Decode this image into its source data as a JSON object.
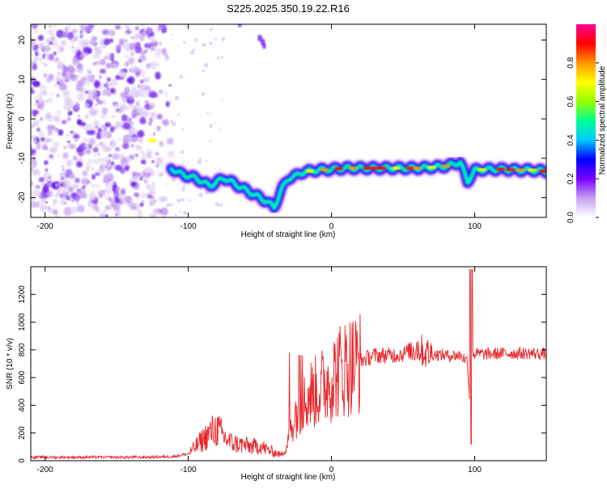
{
  "figure_title": "S225.2025.350.19.22.R16",
  "chart_data": [
    {
      "type": "heatmap",
      "xlabel": "Height of straight line (km)",
      "ylabel": "Frequency (Hz)",
      "xlim": [
        -210,
        150
      ],
      "ylim": [
        -25,
        24
      ],
      "x_ticks": [
        -200,
        -100,
        0,
        100
      ],
      "y_ticks": [
        -20,
        -10,
        0,
        10,
        20
      ],
      "colorbar": {
        "label": "Normalized spectral amplitude",
        "range": [
          0,
          1
        ],
        "ticks": [
          "0.0",
          "0.2",
          "0.4",
          "0.6",
          "0.8"
        ],
        "colors": [
          "#ffffff",
          "#c8a0f0",
          "#7a00ff",
          "#0000ff",
          "#00c8ff",
          "#00ff96",
          "#96ff00",
          "#ffff00",
          "#ff9600",
          "#ff0000",
          "#ff0096"
        ]
      },
      "ridge": {
        "x": [
          -135,
          -120,
          -112,
          -105,
          -95,
          -85,
          -75,
          -65,
          -55,
          -45,
          -40,
          -35,
          -30,
          -25,
          -20,
          -10,
          0,
          10,
          20,
          40,
          50,
          60,
          70,
          80,
          90,
          95,
          100,
          110,
          120,
          130,
          140,
          150
        ],
        "y": [
          -5.5,
          -5.5,
          -12.5,
          -14,
          -15,
          -17,
          -15,
          -17,
          -19,
          -21,
          -22.5,
          -18,
          -15,
          -14.5,
          -13.5,
          -13,
          -12.8,
          -12.5,
          -12.5,
          -12.5,
          -12.5,
          -12.5,
          -12.3,
          -12,
          -11,
          -16,
          -13,
          -12.8,
          -12.8,
          -13,
          -13,
          -13.3
        ]
      }
    },
    {
      "type": "line",
      "xlabel": "Height of straight line (km)",
      "ylabel": "SNR (10 * v/v)",
      "xlim": [
        -210,
        150
      ],
      "ylim": [
        0,
        1400
      ],
      "x_ticks": [
        -200,
        -100,
        0,
        100
      ],
      "y_ticks": [
        0,
        200,
        400,
        600,
        800,
        1000,
        1200
      ],
      "series": [
        {
          "name": "SNR",
          "color": "#e8262a",
          "x": [
            -210,
            -190,
            -170,
            -150,
            -130,
            -110,
            -100,
            -95,
            -90,
            -85,
            -80,
            -75,
            -70,
            -65,
            -60,
            -55,
            -50,
            -45,
            -40,
            -35,
            -32,
            -28,
            -25,
            -20,
            -15,
            -10,
            -5,
            0,
            5,
            10,
            15,
            20,
            25,
            30,
            40,
            50,
            55,
            60,
            65,
            70,
            80,
            90,
            95,
            97,
            98,
            100,
            110,
            120,
            130,
            140,
            150
          ],
          "y": [
            25,
            25,
            25,
            25,
            25,
            30,
            50,
            100,
            150,
            200,
            230,
            170,
            130,
            120,
            110,
            100,
            110,
            80,
            60,
            40,
            100,
            250,
            350,
            400,
            480,
            500,
            550,
            600,
            650,
            680,
            700,
            720,
            740,
            760,
            760,
            770,
            800,
            820,
            780,
            770,
            760,
            760,
            720,
            300,
            780,
            770,
            770,
            775,
            775,
            775,
            770
          ]
        }
      ]
    }
  ]
}
